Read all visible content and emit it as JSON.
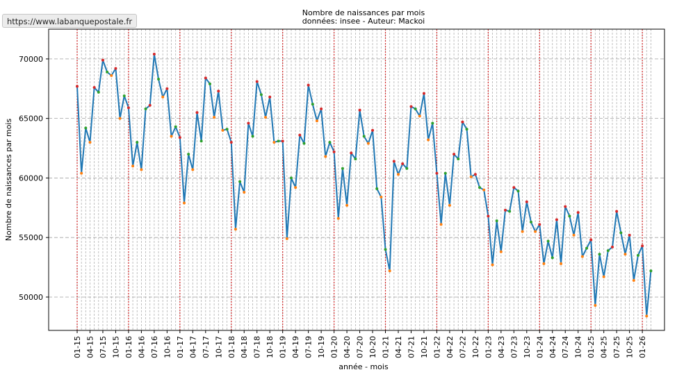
{
  "browser": {
    "status_url": "https://www.labanquepostale.fr"
  },
  "chart_data": {
    "type": "line",
    "title": "Nombre de naissances par mois",
    "subtitle": "données: insee - Auteur: Mackoi",
    "xlabel": "année - mois",
    "ylabel": "Nombre de naissances par mois",
    "ylim": [
      47200,
      72500
    ],
    "yticks": [
      50000,
      55000,
      60000,
      65000,
      70000
    ],
    "grid": true,
    "x_tick_labels": [
      "01-15",
      "04-15",
      "07-15",
      "10-15",
      "01-16",
      "04-16",
      "07-16",
      "10-16",
      "01-17",
      "04-17",
      "07-17",
      "10-17",
      "01-18",
      "04-18",
      "07-18",
      "10-18",
      "01-19",
      "04-19",
      "07-19",
      "10-19",
      "01-20",
      "04-20",
      "07-20",
      "10-20",
      "01-21",
      "04-21",
      "07-21",
      "10-21",
      "01-22",
      "04-22",
      "07-22",
      "10-22",
      "01-23",
      "04-23",
      "07-23",
      "10-23",
      "01-24",
      "04-24",
      "07-24",
      "10-24",
      "01-25",
      "04-25",
      "07-25",
      "10-25",
      "01-26"
    ],
    "year_separators": [
      "01-15",
      "01-16",
      "01-17",
      "01-18",
      "01-19",
      "01-20",
      "01-21",
      "01-22",
      "01-23",
      "01-24",
      "01-25",
      "01-26"
    ],
    "colors": {
      "line": "#1f77b4",
      "year_line": "#d62728",
      "max_marker": "#d62728",
      "mid_marker": "#2ca02c",
      "min_marker": "#ff7f0e"
    },
    "series": [
      {
        "x": [
          "01-15",
          "02-15",
          "03-15",
          "04-15",
          "05-15",
          "06-15",
          "07-15",
          "08-15",
          "09-15",
          "10-15",
          "11-15",
          "12-15",
          "01-16",
          "02-16",
          "03-16",
          "04-16",
          "05-16",
          "06-16",
          "07-16",
          "08-16",
          "09-16",
          "10-16",
          "11-16",
          "12-16",
          "01-17",
          "02-17",
          "03-17",
          "04-17",
          "05-17",
          "06-17",
          "07-17",
          "08-17",
          "09-17",
          "10-17",
          "11-17",
          "12-17",
          "01-18",
          "02-18",
          "03-18",
          "04-18",
          "05-18",
          "06-18",
          "07-18",
          "08-18",
          "09-18",
          "10-18",
          "11-18",
          "12-18",
          "01-19",
          "02-19",
          "03-19",
          "04-19",
          "05-19",
          "06-19",
          "07-19",
          "08-19",
          "09-19",
          "10-19",
          "11-19",
          "12-19",
          "01-20",
          "02-20",
          "03-20",
          "04-20",
          "05-20",
          "06-20",
          "07-20",
          "08-20",
          "09-20",
          "10-20",
          "11-20",
          "12-20",
          "01-21",
          "02-21",
          "03-21",
          "04-21",
          "05-21",
          "06-21",
          "07-21",
          "08-21",
          "09-21",
          "10-21",
          "11-21",
          "12-21",
          "01-22",
          "02-22",
          "03-22",
          "04-22",
          "05-22",
          "06-22",
          "07-22",
          "08-22",
          "09-22",
          "10-22",
          "11-22",
          "12-22",
          "01-23",
          "02-23",
          "03-23",
          "04-23",
          "05-23",
          "06-23",
          "07-23",
          "08-23",
          "09-23",
          "10-23",
          "11-23",
          "12-23",
          "01-24",
          "02-24",
          "03-24",
          "04-24",
          "05-24",
          "06-24",
          "07-24",
          "08-24",
          "09-24",
          "10-24",
          "11-24",
          "12-24",
          "01-25",
          "02-25",
          "03-25",
          "04-25",
          "05-25",
          "06-25",
          "07-25",
          "08-25",
          "09-25",
          "10-25",
          "11-25",
          "12-25",
          "01-26",
          "02-26",
          "03-26"
        ],
        "values": [
          67700,
          60400,
          64200,
          63000,
          67600,
          67200,
          69900,
          68900,
          68600,
          69200,
          65000,
          66900,
          65900,
          61000,
          63000,
          60700,
          65800,
          66100,
          70400,
          68300,
          66800,
          67500,
          63500,
          64300,
          63400,
          57900,
          62000,
          60700,
          65500,
          63100,
          68400,
          67900,
          65100,
          67300,
          64000,
          64100,
          63000,
          55700,
          59700,
          58800,
          64600,
          63500,
          68100,
          67000,
          65100,
          66800,
          63000,
          63100,
          63100,
          54900,
          60000,
          59200,
          63600,
          62900,
          67800,
          66200,
          64800,
          65800,
          61800,
          63000,
          62200,
          56600,
          60800,
          57700,
          62100,
          61600,
          65700,
          63500,
          62900,
          64000,
          59100,
          58400,
          54000,
          52200,
          61400,
          60300,
          61200,
          60800,
          66000,
          65800,
          65200,
          67100,
          63200,
          64600,
          60400,
          56100,
          60400,
          57700,
          62000,
          61600,
          64700,
          64100,
          60100,
          60300,
          59200,
          59000,
          56800,
          52700,
          56400,
          53800,
          57300,
          57200,
          59200,
          58900,
          55500,
          58000,
          56300,
          55500,
          56100,
          52800,
          54700,
          53300,
          56500,
          52800,
          57600,
          56800,
          55200,
          57100,
          53400,
          54100,
          54800,
          49300,
          53600,
          51700,
          53900,
          54200,
          57200,
          55400,
          53600,
          55200,
          51400,
          53500,
          54300,
          48400,
          52200
        ],
        "markers": "max/mid/min per quarter"
      }
    ]
  }
}
